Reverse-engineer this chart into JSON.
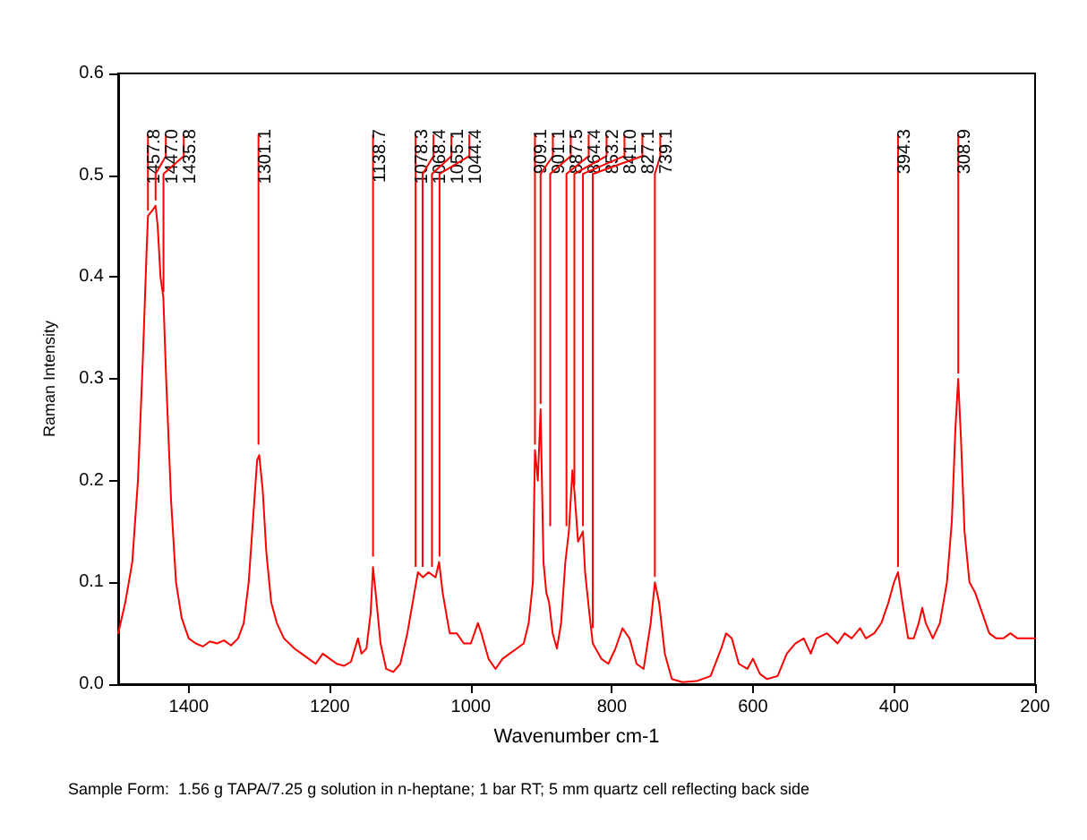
{
  "chart_data": {
    "type": "line",
    "xlabel": "Wavenumber cm-1",
    "ylabel": "Raman Intensity",
    "xlim": [
      1500,
      200
    ],
    "xticks": [
      1400,
      1200,
      1000,
      800,
      600,
      400,
      200
    ],
    "ylim": [
      0,
      0.6
    ],
    "yticks": [
      {
        "value": 0,
        "label": "0.0"
      },
      0.1,
      0.2,
      0.3,
      0.4,
      0.5,
      0.6
    ],
    "grid": false,
    "marker": "none",
    "line_style": "solid",
    "series": [
      {
        "color": "#ff0000",
        "x": [
          1500,
          1490,
          1480,
          1472,
          1465,
          1460,
          1457.8,
          1452,
          1447,
          1444,
          1440,
          1436,
          1432,
          1425,
          1418,
          1410,
          1400,
          1390,
          1380,
          1370,
          1360,
          1350,
          1340,
          1330,
          1322,
          1315,
          1308,
          1303,
          1300,
          1295,
          1290,
          1283,
          1275,
          1265,
          1250,
          1240,
          1230,
          1220,
          1210,
          1200,
          1190,
          1180,
          1170,
          1160,
          1155,
          1148,
          1142,
          1138.7,
          1135,
          1128,
          1120,
          1110,
          1100,
          1090,
          1080,
          1075,
          1068,
          1060,
          1050,
          1045,
          1040,
          1035,
          1030,
          1020,
          1010,
          1000,
          990,
          985,
          975,
          965,
          955,
          945,
          935,
          925,
          918,
          912,
          909.1,
          905,
          901.1,
          897,
          893,
          889,
          884,
          878,
          872,
          866,
          861,
          856,
          853.2,
          848,
          841.0,
          838,
          832,
          827.1,
          815,
          805,
          795,
          785,
          775,
          765,
          755,
          745,
          739,
          733,
          725,
          715,
          700,
          680,
          660,
          645,
          638,
          630,
          620,
          608,
          600,
          590,
          580,
          565,
          552,
          540,
          528,
          518,
          510,
          495,
          480,
          470,
          460,
          448,
          440,
          428,
          418,
          408,
          400,
          394.3,
          388,
          380,
          372,
          365,
          360,
          355,
          345,
          335,
          325,
          318,
          313,
          309,
          305,
          300,
          293,
          285,
          275,
          265,
          255,
          245,
          235,
          225,
          215,
          200
        ],
        "values": [
          0.05,
          0.08,
          0.12,
          0.2,
          0.32,
          0.42,
          0.46,
          0.465,
          0.47,
          0.45,
          0.4,
          0.38,
          0.3,
          0.18,
          0.1,
          0.065,
          0.045,
          0.04,
          0.037,
          0.042,
          0.04,
          0.043,
          0.038,
          0.045,
          0.06,
          0.1,
          0.17,
          0.22,
          0.225,
          0.19,
          0.13,
          0.08,
          0.06,
          0.045,
          0.035,
          0.03,
          0.025,
          0.02,
          0.03,
          0.025,
          0.02,
          0.018,
          0.022,
          0.045,
          0.03,
          0.035,
          0.07,
          0.115,
          0.09,
          0.04,
          0.015,
          0.012,
          0.02,
          0.05,
          0.09,
          0.11,
          0.105,
          0.11,
          0.105,
          0.12,
          0.09,
          0.07,
          0.05,
          0.05,
          0.04,
          0.04,
          0.06,
          0.05,
          0.025,
          0.015,
          0.025,
          0.03,
          0.035,
          0.04,
          0.06,
          0.1,
          0.23,
          0.2,
          0.27,
          0.12,
          0.09,
          0.08,
          0.05,
          0.035,
          0.06,
          0.12,
          0.15,
          0.21,
          0.19,
          0.14,
          0.15,
          0.11,
          0.07,
          0.04,
          0.025,
          0.02,
          0.035,
          0.055,
          0.045,
          0.02,
          0.015,
          0.06,
          0.1,
          0.08,
          0.03,
          0.005,
          0.002,
          0.003,
          0.008,
          0.035,
          0.05,
          0.045,
          0.02,
          0.015,
          0.025,
          0.01,
          0.005,
          0.008,
          0.03,
          0.04,
          0.045,
          0.03,
          0.045,
          0.05,
          0.04,
          0.05,
          0.045,
          0.055,
          0.045,
          0.05,
          0.06,
          0.08,
          0.1,
          0.11,
          0.08,
          0.045,
          0.045,
          0.06,
          0.075,
          0.06,
          0.045,
          0.06,
          0.1,
          0.16,
          0.25,
          0.3,
          0.24,
          0.15,
          0.1,
          0.09,
          0.07,
          0.05,
          0.045,
          0.045,
          0.05,
          0.045,
          0.045,
          0.045
        ]
      }
    ],
    "annotations": [
      {
        "text": "1457.8",
        "x": 1457.8,
        "y": 0.46
      },
      {
        "text": "1447.0",
        "x": 1447.0,
        "y": 0.47
      },
      {
        "text": "1435.8",
        "x": 1435.8,
        "y": 0.38
      },
      {
        "text": "1301.1",
        "x": 1301.1,
        "y": 0.23
      },
      {
        "text": "1138.7",
        "x": 1138.7,
        "y": 0.12
      },
      {
        "text": "1078.3",
        "x": 1078.3,
        "y": 0.11
      },
      {
        "text": "1068.4",
        "x": 1068.4,
        "y": 0.11
      },
      {
        "text": "1055.1",
        "x": 1055.1,
        "y": 0.11
      },
      {
        "text": "1044.4",
        "x": 1044.4,
        "y": 0.12
      },
      {
        "text": "909.1",
        "x": 909.1,
        "y": 0.23
      },
      {
        "text": "901.1",
        "x": 901.1,
        "y": 0.27
      },
      {
        "text": "887.5",
        "x": 887.5,
        "y": 0.15
      },
      {
        "text": "864.4",
        "x": 864.4,
        "y": 0.15
      },
      {
        "text": "853.2",
        "x": 853.2,
        "y": 0.19
      },
      {
        "text": "841.0",
        "x": 841.0,
        "y": 0.15
      },
      {
        "text": "827.1",
        "x": 827.1,
        "y": 0.05
      },
      {
        "text": "739.1",
        "x": 739.1,
        "y": 0.1
      },
      {
        "text": "394.3",
        "x": 394.3,
        "y": 0.11
      },
      {
        "text": "308.9",
        "x": 308.9,
        "y": 0.3
      },
      "Sample Form:  1.56 g TAPA/7.25 g solution in n-heptane; 1 bar RT; 5 mm quartz cell reflecting back side"
    ]
  }
}
